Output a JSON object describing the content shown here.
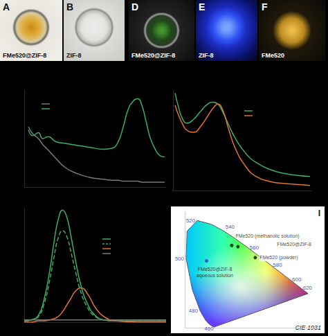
{
  "photos": [
    {
      "letter": "A",
      "caption": "FMe520@ZIF-8"
    },
    {
      "letter": "B",
      "caption": "ZIF-8"
    },
    {
      "letter": "D",
      "caption": "FMe520@ZIF-8"
    },
    {
      "letter": "E",
      "caption": "ZIF-8"
    },
    {
      "letter": "F",
      "caption": "FMe520"
    }
  ],
  "chart_data": [
    {
      "type": "line",
      "xlim": [
        0,
        100
      ],
      "ylim": [
        0,
        1
      ],
      "tick_labels": false,
      "grid": false,
      "x": [
        3,
        6,
        10,
        13,
        17,
        22,
        29,
        37,
        46,
        56,
        62,
        66,
        70,
        73,
        77,
        80,
        83,
        86,
        89,
        93,
        96,
        99
      ],
      "series": [
        {
          "color": "#7a7a7a",
          "line_style": "solid",
          "values": [
            0.62,
            0.55,
            0.5,
            0.44,
            0.38,
            0.3,
            0.2,
            0.14,
            0.1,
            0.08,
            0.07,
            0.07,
            0.06,
            0.06,
            0.06,
            0.06,
            0.05,
            0.05,
            0.05,
            0.05,
            0.05,
            0.05
          ]
        },
        {
          "color": "#3dae63",
          "line_style": "solid",
          "values": [
            0.59,
            0.53,
            0.56,
            0.5,
            0.52,
            0.47,
            0.45,
            0.43,
            0.41,
            0.39,
            0.4,
            0.46,
            0.63,
            0.79,
            0.89,
            0.91,
            0.84,
            0.67,
            0.5,
            0.37,
            0.32,
            0.31
          ]
        }
      ]
    },
    {
      "type": "line",
      "xlim": [
        0,
        100
      ],
      "ylim": [
        0,
        1
      ],
      "tick_labels": false,
      "grid": false,
      "x": [
        1.5,
        4,
        7,
        10,
        15,
        20,
        25,
        29,
        32.5,
        36,
        40,
        45,
        52.5,
        60,
        70,
        80,
        90,
        99
      ],
      "series": [
        {
          "color": "#3dae63",
          "line_style": "solid",
          "values": [
            0.97,
            0.83,
            0.71,
            0.67,
            0.71,
            0.79,
            0.86,
            0.88,
            0.86,
            0.78,
            0.66,
            0.52,
            0.37,
            0.28,
            0.21,
            0.17,
            0.15,
            0.14
          ]
        },
        {
          "color": "#e2733a",
          "line_style": "solid",
          "values": [
            0.85,
            0.75,
            0.66,
            0.6,
            0.58,
            0.64,
            0.74,
            0.82,
            0.86,
            0.8,
            0.62,
            0.42,
            0.24,
            0.14,
            0.09,
            0.07,
            0.06,
            0.05
          ]
        }
      ]
    },
    {
      "type": "line",
      "xlim": [
        0,
        100
      ],
      "ylim": [
        0,
        1
      ],
      "tick_labels": false,
      "grid": false,
      "x": [
        0,
        5,
        10,
        14,
        18,
        21,
        24,
        27,
        30,
        33,
        36,
        40,
        45,
        50,
        56,
        65,
        80,
        100
      ],
      "series": [
        {
          "color": "#3dae63",
          "line_style": "solid",
          "values": [
            0.01,
            0.02,
            0.06,
            0.2,
            0.45,
            0.7,
            0.9,
            0.98,
            0.92,
            0.75,
            0.55,
            0.32,
            0.15,
            0.06,
            0.02,
            0.01,
            0.01,
            0.01
          ]
        },
        {
          "color": "#3dae63",
          "line_style": "dashed",
          "values": [
            0.01,
            0.02,
            0.05,
            0.16,
            0.37,
            0.57,
            0.74,
            0.8,
            0.75,
            0.61,
            0.45,
            0.26,
            0.12,
            0.05,
            0.02,
            0.01,
            0.01,
            0.01
          ]
        },
        {
          "color": "#e2733a",
          "line_style": "solid",
          "values": [
            0,
            0,
            0.01,
            0.01,
            0.02,
            0.03,
            0.05,
            0.09,
            0.15,
            0.21,
            0.27,
            0.3,
            0.24,
            0.13,
            0.05,
            0.01,
            0,
            0
          ]
        },
        {
          "color": "#7a7a7a",
          "line_style": "solid",
          "values": [
            0.02,
            0.02,
            0.02,
            0.02,
            0.02,
            0.02,
            0.02,
            0.02,
            0.02,
            0.02,
            0.02,
            0.02,
            0.02,
            0.02,
            0.02,
            0.02,
            0.02,
            0.02
          ]
        }
      ]
    },
    {
      "type": "chromaticity",
      "letter": "I",
      "title": "CIE 1931",
      "xlim": [
        0,
        0.8
      ],
      "ylim": [
        0,
        0.9
      ],
      "tick_labels": false,
      "grid": false,
      "locus": {
        "wavelength": [
          380,
          440,
          450,
          460,
          470,
          480,
          490,
          500,
          510,
          520,
          530,
          540,
          550,
          560,
          570,
          580,
          590,
          600,
          610,
          620,
          640,
          700
        ],
        "x": [
          0.1741,
          0.1644,
          0.1566,
          0.144,
          0.1241,
          0.0913,
          0.0454,
          0.0082,
          0.0139,
          0.0743,
          0.1547,
          0.2296,
          0.3016,
          0.3731,
          0.4441,
          0.5125,
          0.5752,
          0.627,
          0.6658,
          0.6915,
          0.719,
          0.7347
        ],
        "y": [
          0.005,
          0.0109,
          0.0177,
          0.0297,
          0.0578,
          0.1327,
          0.295,
          0.5384,
          0.7502,
          0.8338,
          0.8059,
          0.7543,
          0.6923,
          0.6245,
          0.5547,
          0.4866,
          0.4242,
          0.3725,
          0.334,
          0.3083,
          0.2809,
          0.2653
        ]
      },
      "wavelength_labels": [
        460,
        480,
        500,
        520,
        540,
        560,
        580,
        600,
        620
      ],
      "points": [
        {
          "label": "FMe520 (methanolic solution)",
          "x": 0.28,
          "y": 0.64,
          "color": "#111111"
        },
        {
          "label": "FMe520@ZIF-8",
          "x": 0.317,
          "y": 0.63,
          "color": "#111111"
        },
        {
          "label": "FMe520 (powder)",
          "x": 0.42,
          "y": 0.545,
          "color": "#111111"
        },
        {
          "label": "FMe520@ZIF-8 aqueous solution",
          "x": 0.13,
          "y": 0.52,
          "color": "#2040c8"
        }
      ]
    }
  ]
}
